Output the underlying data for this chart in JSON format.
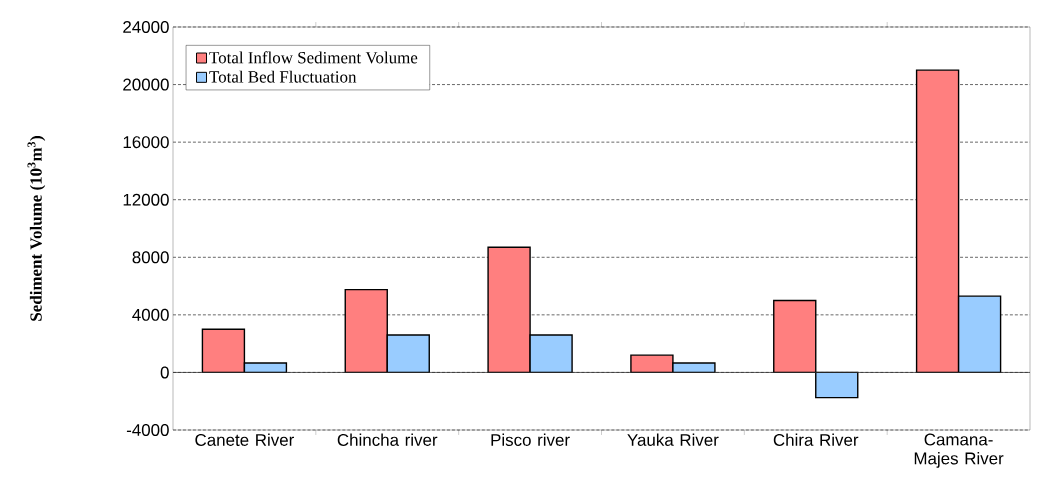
{
  "chart_data": {
    "type": "bar",
    "ylabel": "Sediment Volume (10$^{3}$m$^{3}$)",
    "categories": [
      "Canete River",
      "Chincha river",
      "Pisco river",
      "Yauka River",
      "Chira River",
      "Camana-Majes River"
    ],
    "series": [
      {
        "name": "Total Inflow Sediment Volume",
        "color": "#ff7f7f",
        "values": [
          3000,
          5750,
          8700,
          1200,
          5000,
          21000
        ]
      },
      {
        "name": "Total Bed Fluctuation",
        "color": "#99ccff",
        "values": [
          650,
          2600,
          2600,
          650,
          -1750,
          5300
        ]
      }
    ],
    "ylim": [
      -4000,
      24000
    ],
    "yticks": [
      -4000,
      0,
      4000,
      8000,
      12000,
      16000,
      20000,
      24000
    ],
    "grid": "y",
    "legend": "top left"
  }
}
